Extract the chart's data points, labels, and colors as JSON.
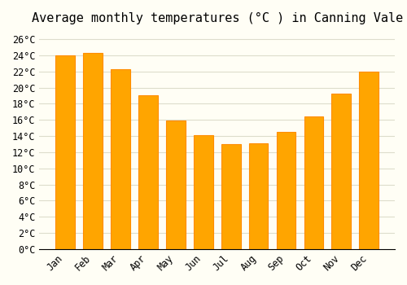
{
  "title": "Average monthly temperatures (°C ) in Canning Vale",
  "months": [
    "Jan",
    "Feb",
    "Mar",
    "Apr",
    "May",
    "Jun",
    "Jul",
    "Aug",
    "Sep",
    "Oct",
    "Nov",
    "Dec"
  ],
  "values": [
    24.0,
    24.3,
    22.3,
    19.0,
    15.9,
    14.1,
    13.0,
    13.1,
    14.5,
    16.4,
    19.2,
    22.0
  ],
  "bar_color": "#FFA500",
  "bar_edge_color": "#FF8C00",
  "background_color": "#FFFEF5",
  "grid_color": "#DDDDCC",
  "ylim": [
    0,
    27
  ],
  "yticks": [
    0,
    2,
    4,
    6,
    8,
    10,
    12,
    14,
    16,
    18,
    20,
    22,
    24,
    26
  ],
  "title_fontsize": 11,
  "tick_fontsize": 8.5,
  "title_font": "monospace",
  "tick_font": "monospace"
}
